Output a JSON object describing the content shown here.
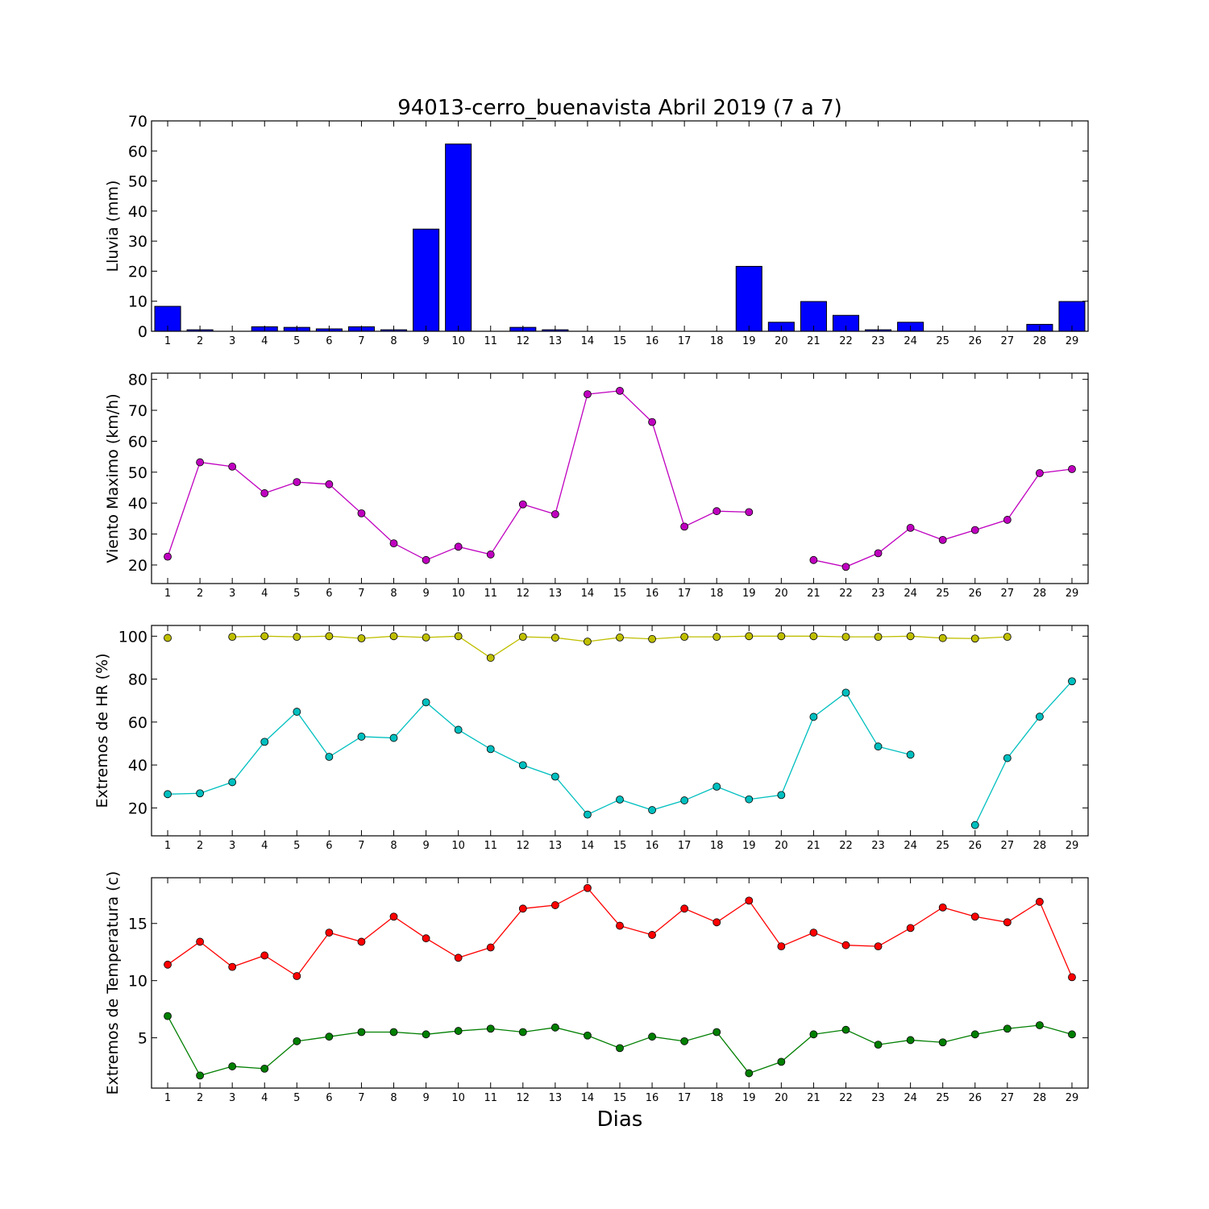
{
  "chart_data": [
    {
      "type": "bar",
      "title": "94013-cerro_buenavista Abril 2019  (7 a 7)",
      "ylabel": "Lluvia (mm)",
      "xlabel": "",
      "x": [
        1,
        2,
        3,
        4,
        5,
        6,
        7,
        8,
        9,
        10,
        11,
        12,
        13,
        14,
        15,
        16,
        17,
        18,
        19,
        20,
        21,
        22,
        23,
        24,
        25,
        26,
        27,
        28,
        29
      ],
      "ylim": [
        0,
        70
      ],
      "yticks": [
        0,
        10,
        20,
        30,
        40,
        50,
        60,
        70
      ],
      "grid": false,
      "series": [
        {
          "color": "#0000ff",
          "values": [
            8.3,
            0.5,
            0,
            1.5,
            1.3,
            0.8,
            1.5,
            0.5,
            34.0,
            62.3,
            0,
            1.3,
            0.5,
            0,
            0,
            0,
            0,
            0,
            21.6,
            3.0,
            9.9,
            5.3,
            0.5,
            3.0,
            0,
            0,
            0,
            2.3,
            9.9
          ]
        }
      ]
    },
    {
      "type": "line",
      "title": "",
      "ylabel": "Viento Maximo (km/h)",
      "xlabel": "",
      "x": [
        1,
        2,
        3,
        4,
        5,
        6,
        7,
        8,
        9,
        10,
        11,
        12,
        13,
        14,
        15,
        16,
        17,
        18,
        19,
        20,
        21,
        22,
        23,
        24,
        25,
        26,
        27,
        28,
        29
      ],
      "ylim": [
        14,
        82
      ],
      "yticks": [
        20,
        30,
        40,
        50,
        60,
        70,
        80
      ],
      "grid": false,
      "series": [
        {
          "color": "#bf00bf",
          "values": [
            22.7,
            53.2,
            51.8,
            43.2,
            46.8,
            46.1,
            36.7,
            27.0,
            21.6,
            25.9,
            23.4,
            39.6,
            36.4,
            75.2,
            76.3,
            66.2,
            32.4,
            37.4,
            37.1,
            null,
            21.6,
            19.4,
            23.8,
            32.0,
            28.1,
            31.3,
            34.6,
            49.7,
            51.0
          ]
        }
      ]
    },
    {
      "type": "line",
      "title": "",
      "ylabel": "Extremos de HR (%)",
      "xlabel": "",
      "x": [
        1,
        2,
        3,
        4,
        5,
        6,
        7,
        8,
        9,
        10,
        11,
        12,
        13,
        14,
        15,
        16,
        17,
        18,
        19,
        20,
        21,
        22,
        23,
        24,
        25,
        26,
        27,
        28,
        29
      ],
      "ylim": [
        7,
        105
      ],
      "yticks": [
        20,
        40,
        60,
        80,
        100
      ],
      "grid": false,
      "series": [
        {
          "color": "#bfbf00",
          "values": [
            99.2,
            null,
            99.7,
            100.0,
            99.7,
            100.0,
            99.0,
            100.0,
            99.4,
            100.0,
            89.9,
            99.7,
            99.3,
            97.5,
            99.4,
            98.7,
            99.7,
            99.7,
            100.0,
            100.0,
            100.0,
            99.7,
            99.7,
            100.0,
            99.1,
            98.9,
            99.7,
            null,
            null
          ]
        },
        {
          "color": "#00bfbf",
          "values": [
            26.4,
            26.8,
            32.0,
            50.8,
            64.8,
            43.8,
            53.2,
            52.6,
            69.2,
            56.4,
            47.4,
            39.9,
            34.6,
            16.9,
            23.9,
            19.0,
            23.5,
            29.9,
            24.0,
            26.0,
            62.4,
            73.7,
            48.6,
            44.8,
            null,
            12.0,
            43.2,
            62.5,
            79.0
          ]
        }
      ]
    },
    {
      "type": "line",
      "title": "",
      "ylabel": "Extremos de Temperatura (c)",
      "xlabel": "Dias",
      "x": [
        1,
        2,
        3,
        4,
        5,
        6,
        7,
        8,
        9,
        10,
        11,
        12,
        13,
        14,
        15,
        16,
        17,
        18,
        19,
        20,
        21,
        22,
        23,
        24,
        25,
        26,
        27,
        28,
        29
      ],
      "ylim": [
        0.6,
        19.0
      ],
      "yticks": [
        5,
        10,
        15
      ],
      "grid": false,
      "series": [
        {
          "color": "#ff0000",
          "values": [
            11.4,
            13.4,
            11.2,
            12.2,
            10.4,
            14.2,
            13.4,
            15.6,
            13.7,
            12.0,
            12.9,
            16.3,
            16.6,
            18.1,
            14.8,
            14.0,
            16.3,
            15.1,
            17.0,
            13.0,
            14.2,
            13.1,
            13.0,
            14.6,
            16.4,
            15.6,
            15.1,
            16.9,
            10.3
          ]
        },
        {
          "color": "#007f00",
          "values": [
            6.9,
            1.7,
            2.5,
            2.3,
            4.7,
            5.1,
            5.5,
            5.5,
            5.3,
            5.6,
            5.8,
            5.5,
            5.9,
            5.2,
            4.1,
            5.1,
            4.7,
            5.5,
            1.9,
            2.9,
            5.3,
            5.7,
            4.4,
            4.8,
            4.6,
            5.3,
            5.8,
            6.1,
            5.3
          ]
        }
      ]
    }
  ]
}
